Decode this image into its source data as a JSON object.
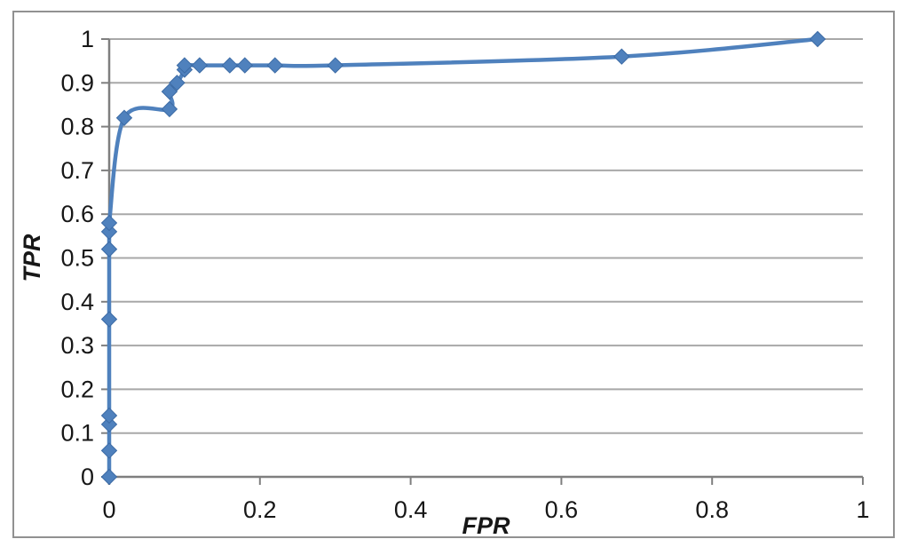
{
  "chart_data": {
    "type": "line",
    "subtype": "smooth-line-with-markers",
    "xlabel": "FPR",
    "ylabel": "TPR",
    "xlim": [
      0,
      1
    ],
    "ylim": [
      0,
      1
    ],
    "grid": "horizontal-major",
    "legend": false,
    "x_ticks": {
      "values": [
        0,
        0.2,
        0.4,
        0.6,
        0.8,
        1
      ],
      "labels": [
        "0",
        "0.2",
        "0.4",
        "0.6",
        "0.8",
        "1"
      ]
    },
    "y_ticks": {
      "values": [
        0,
        0.1,
        0.2,
        0.3,
        0.4,
        0.5,
        0.6,
        0.7,
        0.8,
        0.9,
        1
      ],
      "labels": [
        "0",
        "0.1",
        "0.2",
        "0.3",
        "0.4",
        "0.5",
        "0.6",
        "0.7",
        "0.8",
        "0.9",
        "1"
      ]
    },
    "series": [
      {
        "marker": "diamond",
        "line_color": "#4f81bd",
        "marker_fill": "#4f81bd",
        "marker_border": "#3c6ba5",
        "points": [
          [
            0,
            0
          ],
          [
            0,
            0.06
          ],
          [
            0,
            0.12
          ],
          [
            0,
            0.14
          ],
          [
            0,
            0.36
          ],
          [
            0,
            0.52
          ],
          [
            0,
            0.56
          ],
          [
            0,
            0.58
          ],
          [
            0.02,
            0.82
          ],
          [
            0.08,
            0.84
          ],
          [
            0.08,
            0.88
          ],
          [
            0.09,
            0.9
          ],
          [
            0.1,
            0.93
          ],
          [
            0.1,
            0.94
          ],
          [
            0.12,
            0.94
          ],
          [
            0.16,
            0.94
          ],
          [
            0.18,
            0.94
          ],
          [
            0.22,
            0.94
          ],
          [
            0.3,
            0.94
          ],
          [
            0.68,
            0.96
          ],
          [
            0.94,
            1.0
          ]
        ]
      }
    ],
    "colors": {
      "gridline": "#a8a8a8",
      "axis": "#7f7f7f",
      "chart_border": "#919191",
      "text": "#171717",
      "background": "#ffffff"
    }
  }
}
